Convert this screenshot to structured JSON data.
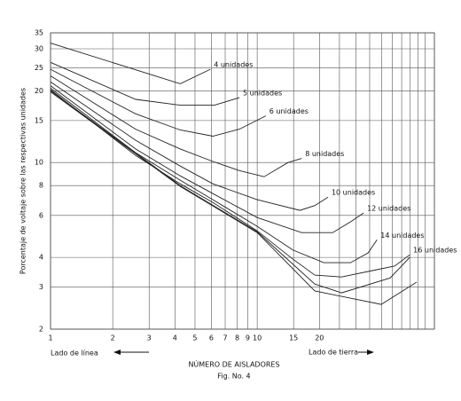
{
  "chart_data": {
    "type": "line",
    "y_label": "Porcentaje de voltaje sobre las respectivas unidades",
    "x_label": "NÚMERO DE AISLADORES",
    "caption": "Fig. No. 4",
    "left_note": "Lado de línea",
    "right_note": "Lado de tierra",
    "x_log": true,
    "y_log": true,
    "grid": true,
    "xlim": [
      1,
      72
    ],
    "ylim": [
      2,
      35
    ],
    "xticks": [
      1,
      2,
      3,
      4,
      5,
      6,
      7,
      8,
      9,
      10,
      15,
      20
    ],
    "x_minor_grid": [
      25,
      30,
      35,
      40,
      45,
      50,
      55,
      60,
      65
    ],
    "yticks": [
      2,
      3,
      4,
      6,
      8,
      10,
      15,
      20,
      25,
      30,
      35
    ],
    "series": [
      {
        "name": "4 unidades",
        "color": "#222222",
        "x": [
          1,
          4.24,
          5.93
        ],
        "values": [
          31.7,
          21.4,
          24.6
        ]
      },
      {
        "name": "5 unidades",
        "color": "#222222",
        "x": [
          1,
          2.58,
          4.24,
          6.2,
          8.2
        ],
        "values": [
          26.3,
          18.4,
          17.4,
          17.4,
          18.7
        ]
      },
      {
        "name": "6 unidades",
        "color": "#222222",
        "x": [
          1,
          2.58,
          4.24,
          6.1,
          8.2,
          11.0
        ],
        "values": [
          24.6,
          16.0,
          13.7,
          12.9,
          13.8,
          15.7
        ]
      },
      {
        "name": "8 unidades",
        "color": "#222222",
        "x": [
          1,
          2.58,
          4.24,
          6.1,
          8.2,
          10.8,
          14.1,
          16.4
        ],
        "values": [
          23.1,
          13.8,
          11.4,
          10.1,
          9.25,
          8.72,
          10.0,
          10.4
        ]
      },
      {
        "name": "10 unidades",
        "color": "#222222",
        "x": [
          1,
          2.58,
          4.24,
          6.1,
          10,
          16.1,
          19.0,
          22.0
        ],
        "values": [
          21.8,
          12.4,
          9.66,
          8.14,
          6.98,
          6.3,
          6.6,
          7.16
        ]
      },
      {
        "name": "12 unidades",
        "color": "#222222",
        "x": [
          1,
          2.58,
          4.24,
          6.1,
          10,
          16.4,
          23.2,
          28.3,
          32.7
        ],
        "values": [
          21.0,
          11.4,
          8.79,
          7.41,
          5.88,
          5.08,
          5.08,
          5.64,
          6.14
        ]
      },
      {
        "name": "14 unidades",
        "color": "#222222",
        "x": [
          1,
          2.58,
          4.24,
          6.1,
          10,
          14.9,
          21.0,
          28.3,
          34.4,
          38.0
        ],
        "values": [
          20.5,
          11.0,
          8.43,
          6.98,
          5.4,
          4.29,
          3.8,
          3.8,
          4.18,
          4.74
        ]
      },
      {
        "name": "16 unidades",
        "color": "#222222",
        "x": [
          1,
          2.58,
          4.24,
          6.1,
          10,
          14.9,
          19.0,
          25.6,
          36.1,
          46.3,
          54.7
        ],
        "values": [
          20.2,
          10.7,
          8.14,
          6.8,
          5.17,
          3.93,
          3.37,
          3.31,
          3.52,
          3.68,
          4.1
        ]
      },
      {
        "color": "#222222",
        "x": [
          1,
          4.24,
          10,
          19.0,
          39.8,
          59.1
        ],
        "values": [
          19.8,
          7.94,
          5.08,
          2.89,
          2.54,
          3.15
        ]
      },
      {
        "color": "#222222",
        "x": [
          1,
          4.24,
          10,
          19.0,
          25.6,
          44.0,
          54.7
        ],
        "values": [
          20.0,
          8.0,
          5.12,
          3.09,
          2.84,
          3.28,
          4.0
        ]
      }
    ]
  }
}
